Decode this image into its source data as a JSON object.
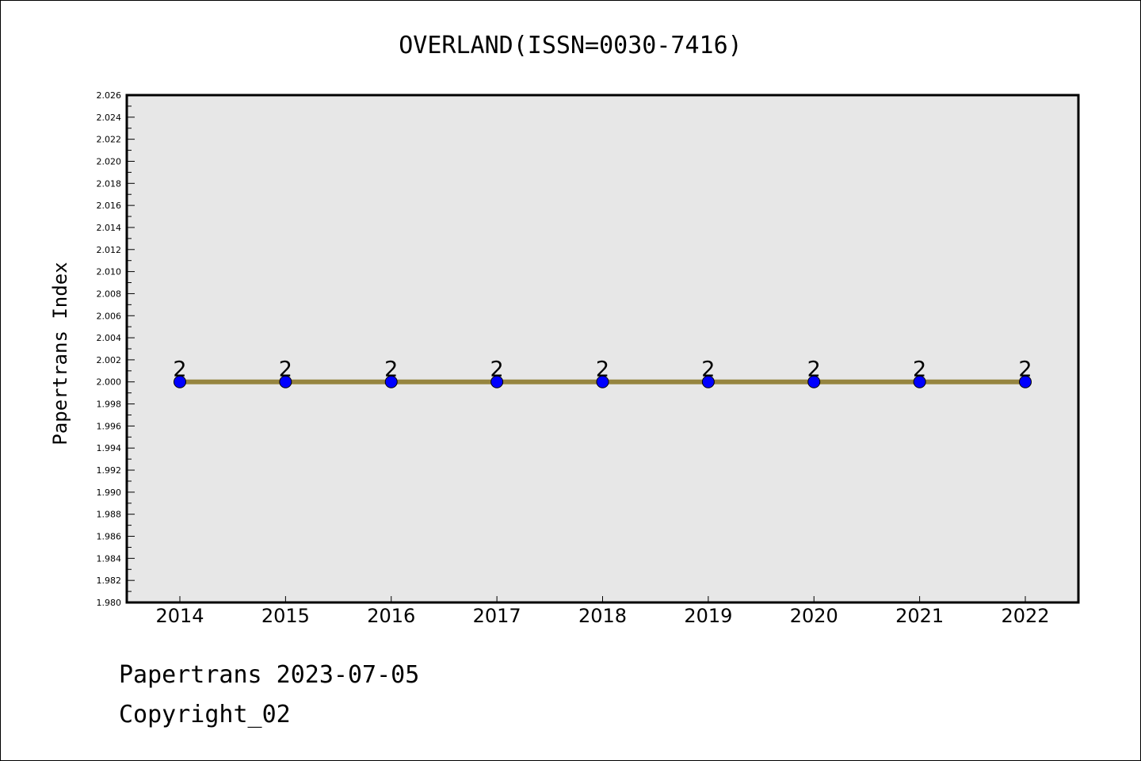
{
  "chart_data": {
    "type": "line",
    "title": "OVERLAND(ISSN=0030-7416)",
    "ylabel": "Papertrans Index",
    "xlabel": "",
    "x": [
      "2014",
      "2015",
      "2016",
      "2017",
      "2018",
      "2019",
      "2020",
      "2021",
      "2022"
    ],
    "series": [
      {
        "values": [
          2,
          2,
          2,
          2,
          2,
          2,
          2,
          2,
          2
        ],
        "data_labels": [
          "2",
          "2",
          "2",
          "2",
          "2",
          "2",
          "2",
          "2",
          "2"
        ],
        "line_color": "#968540",
        "marker_color": "#0000ff"
      }
    ],
    "ylim": [
      1.98,
      2.026
    ],
    "yticks": [
      "1.980",
      "1.982",
      "1.984",
      "1.986",
      "1.988",
      "1.990",
      "1.992",
      "1.994",
      "1.996",
      "1.998",
      "2.000",
      "2.002",
      "2.004",
      "2.006",
      "2.008",
      "2.010",
      "2.012",
      "2.014",
      "2.016",
      "2.018",
      "2.020",
      "2.022",
      "2.024",
      "2.026"
    ],
    "ytick_step": 0.002,
    "grid": false,
    "plot_background": "#e7e7e7"
  },
  "footer": {
    "line1": "Papertrans 2023-07-05",
    "line2": "Copyright_02"
  }
}
